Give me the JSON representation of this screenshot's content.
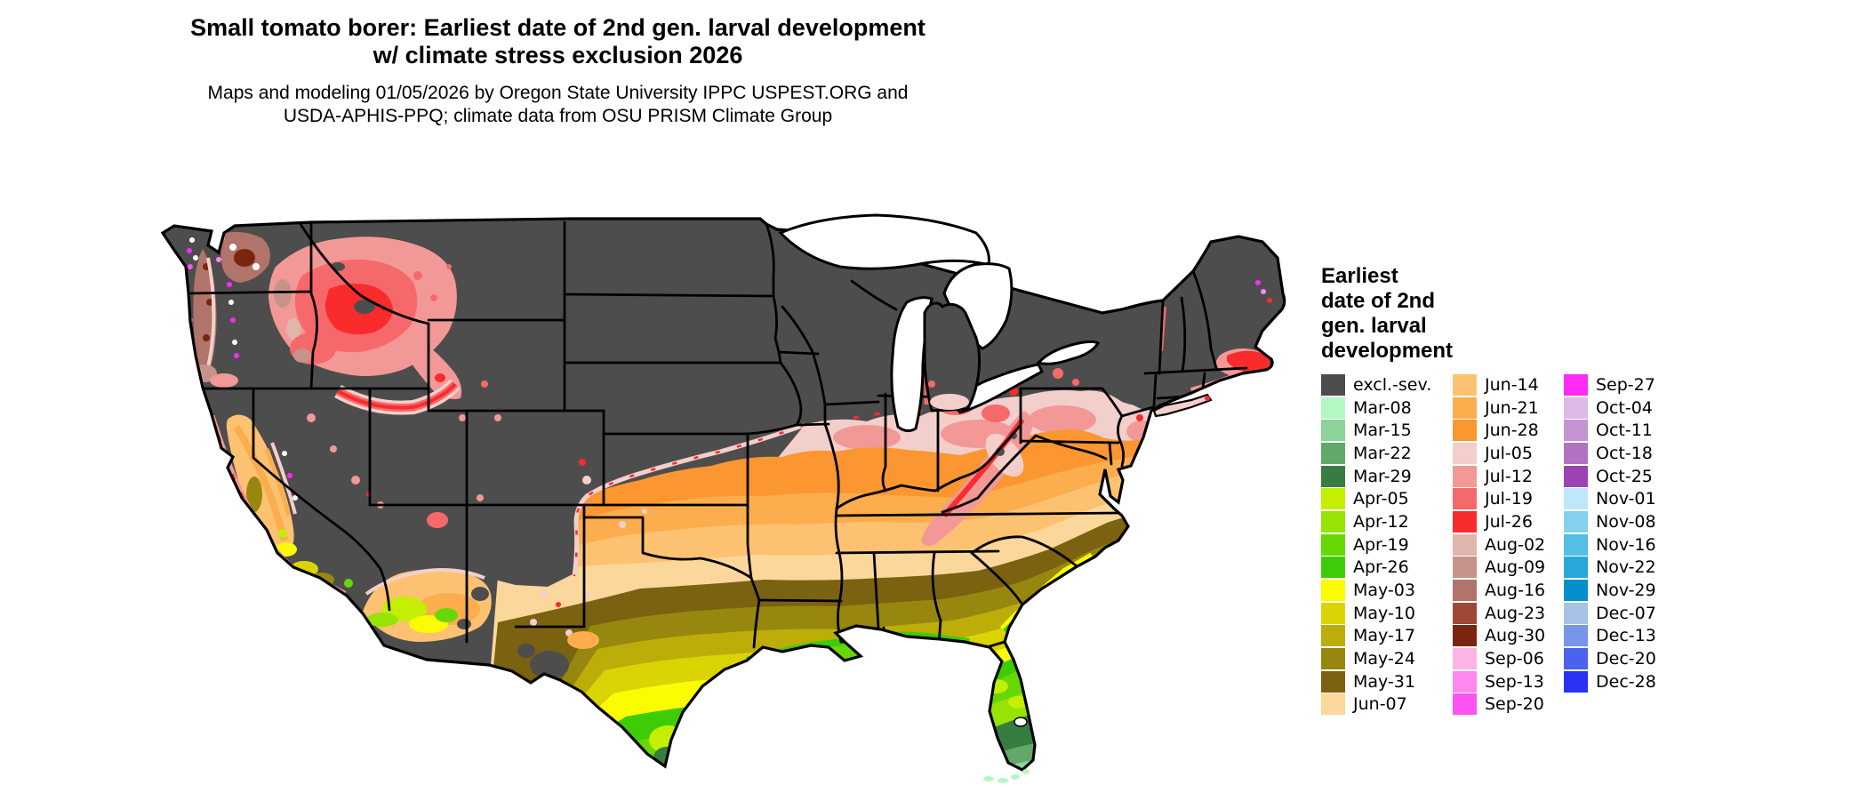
{
  "header": {
    "title_line1": "Small tomato borer: Earliest date of 2nd gen. larval development",
    "title_line2": "w/ climate stress exclusion 2026",
    "subtitle_line1": "Maps and modeling 01/05/2026 by Oregon State University IPPC USPEST.ORG and",
    "subtitle_line2": "USDA-APHIS-PPQ; climate data from OSU PRISM Climate Group"
  },
  "legend": {
    "title_lines": [
      "Earliest",
      "date of 2nd",
      "gen. larval",
      "development"
    ],
    "columns": [
      [
        {
          "key": "excl",
          "label": "excl.-sev.",
          "color": "#4d4d4d"
        },
        {
          "key": "mar08",
          "label": "Mar-08",
          "color": "#b4f7c4"
        },
        {
          "key": "mar15",
          "label": "Mar-15",
          "color": "#8ed39b"
        },
        {
          "key": "mar22",
          "label": "Mar-22",
          "color": "#62a86b"
        },
        {
          "key": "mar29",
          "label": "Mar-29",
          "color": "#377d41"
        },
        {
          "key": "apr05",
          "label": "Apr-05",
          "color": "#c4ef02"
        },
        {
          "key": "apr12",
          "label": "Apr-12",
          "color": "#97e303"
        },
        {
          "key": "apr19",
          "label": "Apr-19",
          "color": "#68d804"
        },
        {
          "key": "apr26",
          "label": "Apr-26",
          "color": "#3ecc06"
        },
        {
          "key": "may03",
          "label": "May-03",
          "color": "#fbfc02"
        },
        {
          "key": "may10",
          "label": "May-10",
          "color": "#dbd405"
        },
        {
          "key": "may17",
          "label": "May-17",
          "color": "#bcad09"
        },
        {
          "key": "may24",
          "label": "May-24",
          "color": "#97870e"
        },
        {
          "key": "may31",
          "label": "May-31",
          "color": "#7a6210"
        },
        {
          "key": "jun07",
          "label": "Jun-07",
          "color": "#fcd79b"
        }
      ],
      [
        {
          "key": "jun14",
          "label": "Jun-14",
          "color": "#fdc271"
        },
        {
          "key": "jun21",
          "label": "Jun-21",
          "color": "#fcad4d"
        },
        {
          "key": "jun28",
          "label": "Jun-28",
          "color": "#fb9630"
        },
        {
          "key": "jul05",
          "label": "Jul-05",
          "color": "#f3cfcb"
        },
        {
          "key": "jul12",
          "label": "Jul-12",
          "color": "#f29997"
        },
        {
          "key": "jul19",
          "label": "Jul-19",
          "color": "#f6696b"
        },
        {
          "key": "jul26",
          "label": "Jul-26",
          "color": "#fa2b2d"
        },
        {
          "key": "aug02",
          "label": "Aug-02",
          "color": "#dfb5ac"
        },
        {
          "key": "aug09",
          "label": "Aug-09",
          "color": "#c6938b"
        },
        {
          "key": "aug16",
          "label": "Aug-16",
          "color": "#b0746a"
        },
        {
          "key": "aug23",
          "label": "Aug-23",
          "color": "#9c4937"
        },
        {
          "key": "aug30",
          "label": "Aug-30",
          "color": "#7b2410"
        },
        {
          "key": "sep06",
          "label": "Sep-06",
          "color": "#fdb3e3"
        },
        {
          "key": "sep13",
          "label": "Sep-13",
          "color": "#fe88ef"
        },
        {
          "key": "sep20",
          "label": "Sep-20",
          "color": "#fe53f0"
        }
      ],
      [
        {
          "key": "sep27",
          "label": "Sep-27",
          "color": "#fe2bf5"
        },
        {
          "key": "oct04",
          "label": "Oct-04",
          "color": "#ddbbe7"
        },
        {
          "key": "oct11",
          "label": "Oct-11",
          "color": "#c694d4"
        },
        {
          "key": "oct18",
          "label": "Oct-18",
          "color": "#b172c3"
        },
        {
          "key": "oct25",
          "label": "Oct-25",
          "color": "#9b43b3"
        },
        {
          "key": "nov01",
          "label": "Nov-01",
          "color": "#bfe7fb"
        },
        {
          "key": "nov08",
          "label": "Nov-08",
          "color": "#84d1ef"
        },
        {
          "key": "nov16",
          "label": "Nov-16",
          "color": "#54bee4"
        },
        {
          "key": "nov22",
          "label": "Nov-22",
          "color": "#29a7d8"
        },
        {
          "key": "nov29",
          "label": "Nov-29",
          "color": "#0590cb"
        },
        {
          "key": "dec07",
          "label": "Dec-07",
          "color": "#a4c3e5"
        },
        {
          "key": "dec13",
          "label": "Dec-13",
          "color": "#7796ea"
        },
        {
          "key": "dec20",
          "label": "Dec-20",
          "color": "#4a62ee"
        },
        {
          "key": "dec28",
          "label": "Dec-28",
          "color": "#2a32f4"
        }
      ]
    ]
  },
  "map": {
    "excluded_color": "#4d4d4d",
    "state_border_color": "#000000",
    "water_color": "#ffffff"
  }
}
